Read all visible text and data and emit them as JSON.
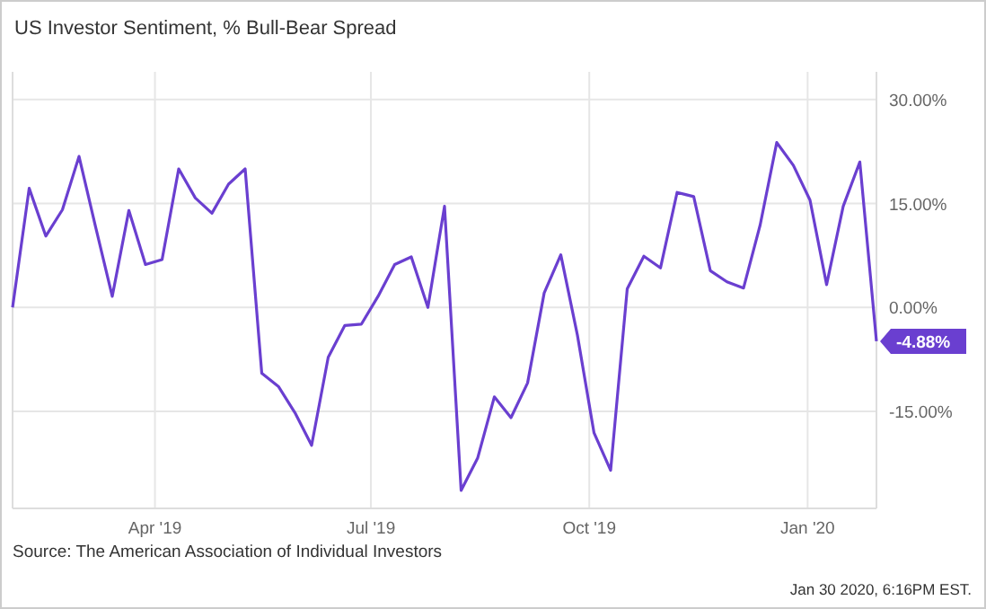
{
  "chart_data": {
    "type": "line",
    "title": "US Investor Sentiment, % Bull-Bear Spread",
    "x": [
      "2019-01-31",
      "2019-02-07",
      "2019-02-14",
      "2019-02-21",
      "2019-02-28",
      "2019-03-07",
      "2019-03-14",
      "2019-03-21",
      "2019-03-28",
      "2019-04-04",
      "2019-04-11",
      "2019-04-18",
      "2019-04-25",
      "2019-05-02",
      "2019-05-09",
      "2019-05-16",
      "2019-05-23",
      "2019-05-30",
      "2019-06-06",
      "2019-06-13",
      "2019-06-20",
      "2019-06-27",
      "2019-07-04",
      "2019-07-11",
      "2019-07-18",
      "2019-07-25",
      "2019-08-01",
      "2019-08-08",
      "2019-08-15",
      "2019-08-22",
      "2019-08-29",
      "2019-09-05",
      "2019-09-12",
      "2019-09-19",
      "2019-09-26",
      "2019-10-03",
      "2019-10-10",
      "2019-10-17",
      "2019-10-24",
      "2019-10-31",
      "2019-11-07",
      "2019-11-14",
      "2019-11-21",
      "2019-11-28",
      "2019-12-05",
      "2019-12-12",
      "2019-12-19",
      "2019-12-26",
      "2020-01-02",
      "2020-01-09",
      "2020-01-16",
      "2020-01-23",
      "2020-01-30"
    ],
    "series": [
      {
        "color": "#6a3fd0",
        "values": [
          0,
          17.2,
          10.3,
          14.1,
          21.8,
          11.6,
          1.6,
          14.0,
          6.2,
          6.9,
          20.0,
          15.8,
          13.6,
          17.8,
          20.0,
          -9.5,
          -11.4,
          -15.2,
          -19.9,
          -7.2,
          -2.6,
          -2.4,
          1.6,
          6.2,
          7.3,
          0,
          14.6,
          -26.4,
          -21.7,
          -12.9,
          -15.9,
          -10.9,
          2.1,
          7.6,
          -4.0,
          -18.1,
          -23.5,
          2.7,
          7.4,
          5.7,
          16.6,
          16.0,
          5.3,
          3.7,
          2.8,
          11.9,
          23.8,
          20.5,
          15.5,
          3.3,
          14.6,
          21.0,
          -4.88
        ],
        "value_labels": [
          null,
          null,
          null,
          null,
          null,
          null,
          null,
          null,
          null,
          null,
          null,
          null,
          null,
          null,
          null,
          null,
          null,
          null,
          null,
          null,
          null,
          null,
          null,
          null,
          null,
          null,
          null,
          null,
          null,
          null,
          null,
          null,
          null,
          null,
          null,
          null,
          null,
          null,
          null,
          null,
          null,
          null,
          null,
          null,
          null,
          null,
          null,
          null,
          null,
          null,
          null,
          null,
          "-4.88%"
        ]
      }
    ],
    "xlim": [
      "2019-01-31",
      "2020-01-30"
    ],
    "xticks": [
      {
        "value": "2019-04-01",
        "label": "Apr '19"
      },
      {
        "value": "2019-07-01",
        "label": "Jul '19"
      },
      {
        "value": "2019-10-01",
        "label": "Oct '19"
      },
      {
        "value": "2020-01-01",
        "label": "Jan '20"
      }
    ],
    "ylim": [
      -29,
      34
    ],
    "yticks": [
      {
        "value": -15,
        "label": "-15.00%"
      },
      {
        "value": 0,
        "label": "0.00%"
      },
      {
        "value": 15,
        "label": "15.00%"
      },
      {
        "value": 30,
        "label": "30.00%"
      }
    ],
    "grid": true,
    "marker": "none",
    "line_style": "solid",
    "annotations": [
      "Source: The American Association of Individual Investors",
      "Jan 30 2020, 6:16PM EST."
    ]
  }
}
